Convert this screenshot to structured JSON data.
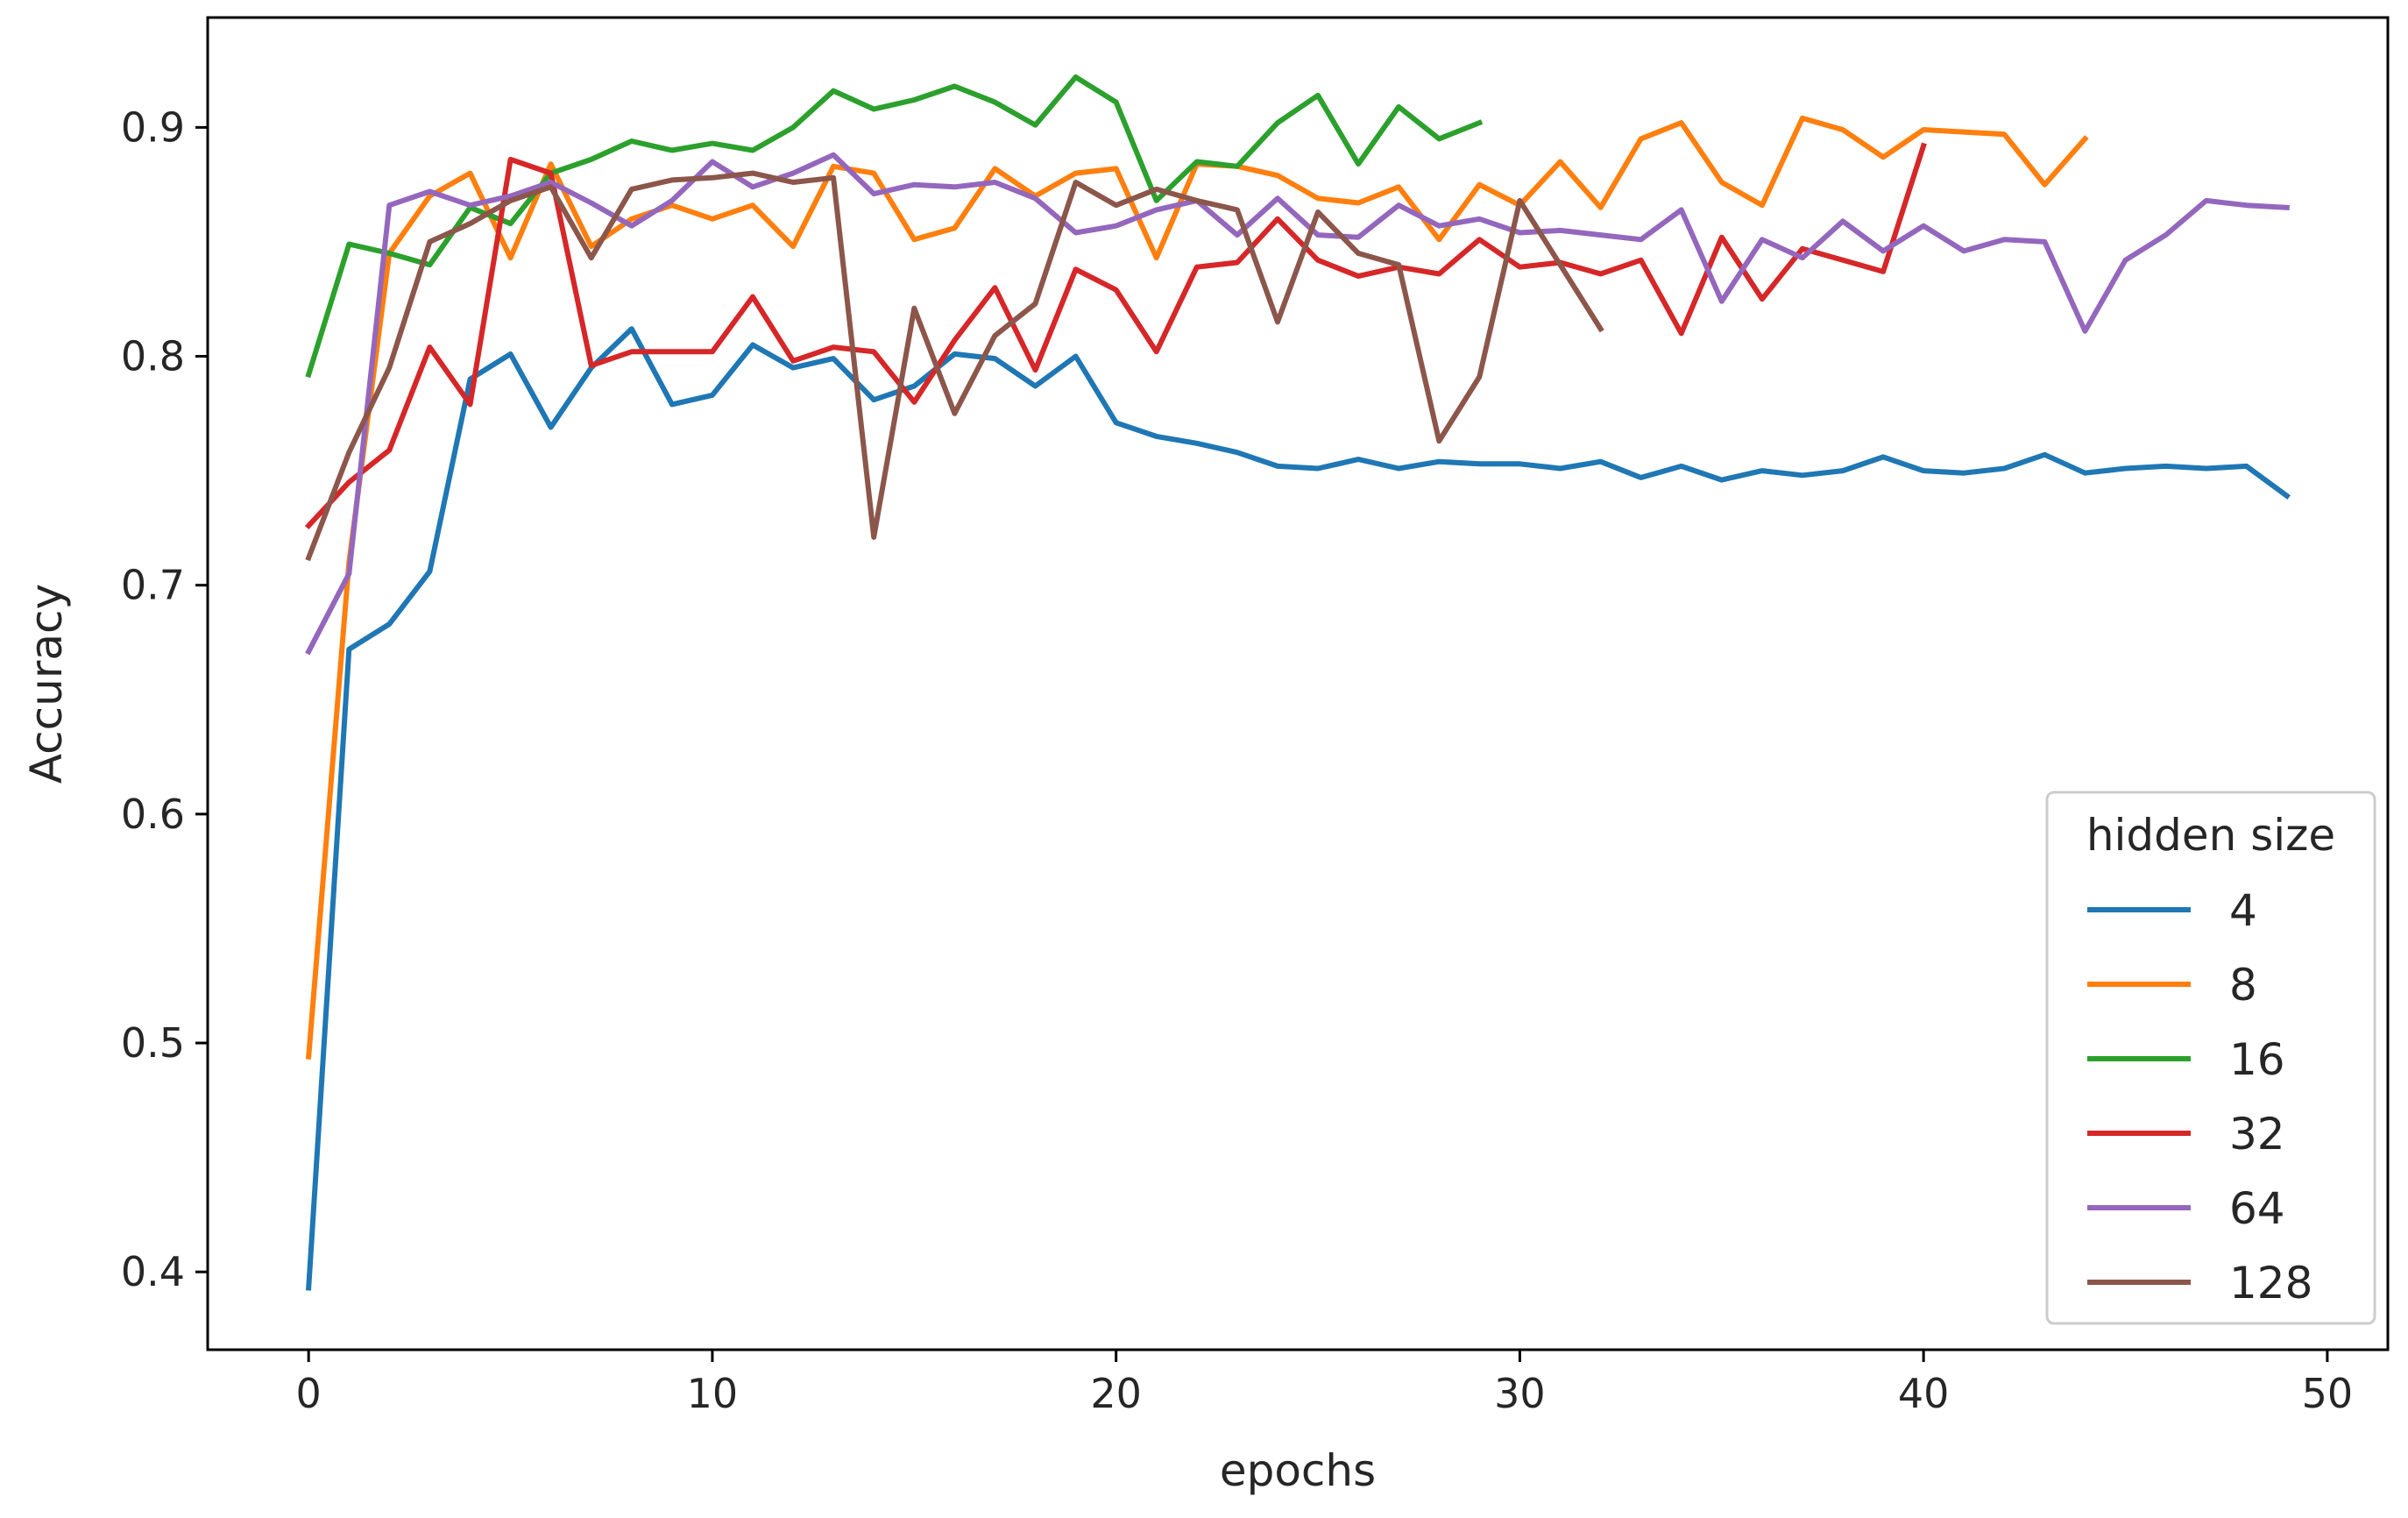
{
  "chart_data": {
    "type": "line",
    "title": "",
    "xlabel": "epochs",
    "ylabel": "Accuracy",
    "xlim": [
      -2.5,
      51.5
    ],
    "ylim": [
      0.366,
      0.948
    ],
    "xticks": [
      0,
      10,
      20,
      30,
      40,
      50
    ],
    "yticks": [
      0.4,
      0.5,
      0.6,
      0.7,
      0.8,
      0.9
    ],
    "xtick_labels": [
      "0",
      "10",
      "20",
      "30",
      "40",
      "50"
    ],
    "ytick_labels": [
      "0.4",
      "0.5",
      "0.6",
      "0.7",
      "0.8",
      "0.9"
    ],
    "grid": false,
    "legend": {
      "title": "hidden size",
      "placement": "lower right"
    },
    "series": [
      {
        "name": "4",
        "color": "#1f77b4",
        "values": [
          0.393,
          0.672,
          0.683,
          0.706,
          0.79,
          0.801,
          0.769,
          0.795,
          0.812,
          0.779,
          0.783,
          0.805,
          0.795,
          0.799,
          0.781,
          0.787,
          0.801,
          0.799,
          0.787,
          0.8,
          0.771,
          0.765,
          0.762,
          0.758,
          0.752,
          0.751,
          0.755,
          0.751,
          0.754,
          0.753,
          0.753,
          0.751,
          0.754,
          0.747,
          0.752,
          0.746,
          0.75,
          0.748,
          0.75,
          0.756,
          0.75,
          0.749,
          0.751,
          0.757,
          0.749,
          0.751,
          0.752,
          0.751,
          0.752,
          0.739
        ]
      },
      {
        "name": "8",
        "color": "#ff7f0e",
        "values": [
          0.494,
          0.71,
          0.845,
          0.87,
          0.88,
          0.843,
          0.884,
          0.848,
          0.86,
          0.866,
          0.86,
          0.866,
          0.848,
          0.883,
          0.88,
          0.851,
          0.856,
          0.882,
          0.87,
          0.88,
          0.882,
          0.843,
          0.884,
          0.883,
          0.879,
          0.869,
          0.867,
          0.874,
          0.851,
          0.875,
          0.866,
          0.885,
          0.865,
          0.895,
          0.902,
          0.876,
          0.866,
          0.904,
          0.899,
          0.887,
          0.899,
          0.898,
          0.897,
          0.875,
          0.895
        ]
      },
      {
        "name": "16",
        "color": "#2ca02c",
        "values": [
          0.792,
          0.849,
          0.845,
          0.84,
          0.865,
          0.858,
          0.88,
          0.886,
          0.894,
          0.89,
          0.893,
          0.89,
          0.9,
          0.916,
          0.908,
          0.912,
          0.918,
          0.911,
          0.901,
          0.922,
          0.911,
          0.868,
          0.885,
          0.883,
          0.902,
          0.914,
          0.884,
          0.909,
          0.895,
          0.902
        ]
      },
      {
        "name": "32",
        "color": "#d62728",
        "values": [
          0.726,
          0.745,
          0.759,
          0.804,
          0.779,
          0.886,
          0.88,
          0.796,
          0.802,
          0.802,
          0.802,
          0.826,
          0.798,
          0.804,
          0.802,
          0.78,
          0.807,
          0.83,
          0.794,
          0.838,
          0.829,
          0.802,
          0.839,
          0.841,
          0.86,
          0.842,
          0.835,
          0.839,
          0.836,
          0.851,
          0.839,
          0.841,
          0.836,
          0.842,
          0.81,
          0.852,
          0.825,
          0.847,
          0.842,
          0.837,
          0.892
        ]
      },
      {
        "name": "64",
        "color": "#9467bd",
        "values": [
          0.671,
          0.705,
          0.866,
          0.872,
          0.866,
          0.87,
          0.876,
          0.867,
          0.857,
          0.868,
          0.885,
          0.874,
          0.88,
          0.888,
          0.871,
          0.875,
          0.874,
          0.876,
          0.869,
          0.854,
          0.857,
          0.864,
          0.868,
          0.853,
          0.869,
          0.853,
          0.852,
          0.866,
          0.857,
          0.86,
          0.854,
          0.855,
          0.853,
          0.851,
          0.864,
          0.824,
          0.851,
          0.843,
          0.859,
          0.846,
          0.857,
          0.846,
          0.851,
          0.85,
          0.811,
          0.842,
          0.853,
          0.868,
          0.866,
          0.865
        ]
      },
      {
        "name": "128",
        "color": "#8c564b",
        "values": [
          0.712,
          0.758,
          0.795,
          0.85,
          0.858,
          0.868,
          0.874,
          0.843,
          0.873,
          0.877,
          0.878,
          0.88,
          0.876,
          0.878,
          0.721,
          0.821,
          0.775,
          0.809,
          0.823,
          0.876,
          0.866,
          0.873,
          0.868,
          0.864,
          0.815,
          0.863,
          0.845,
          0.84,
          0.763,
          0.791,
          0.868,
          0.84,
          0.812
        ]
      }
    ]
  }
}
